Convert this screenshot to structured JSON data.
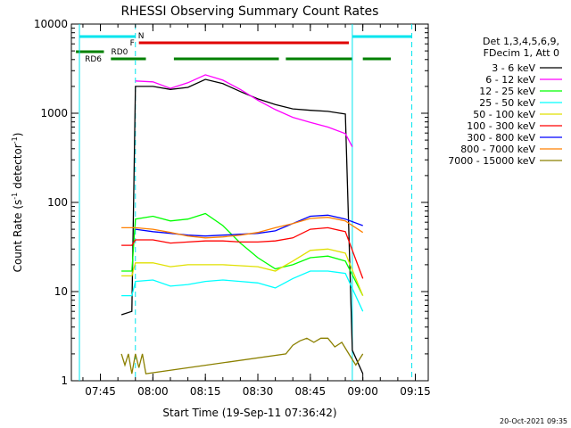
{
  "chart_data": {
    "type": "line",
    "title": "RHESSI Observing Summary Count Rates",
    "xlabel": "Start Time (19-Sep-11 07:36:42)",
    "ylabel_main": "Count Rate (s",
    "ylabel_sup1": "-1",
    "ylabel_mid": " detector",
    "ylabel_sup2": "-1",
    "ylabel_end": ")",
    "yscale": "log",
    "ylim": [
      1,
      10000
    ],
    "xlim_minutes_after_0736_42": [
      0,
      102
    ],
    "x_ticks": [
      "07:45",
      "08:00",
      "08:15",
      "08:30",
      "08:45",
      "09:00",
      "09:15"
    ],
    "y_ticks": [
      "1",
      "10",
      "100",
      "1000",
      "10000"
    ],
    "legend_header": [
      "Det 1,3,4,5,6,9,",
      "FDecim 1, Att 0"
    ],
    "footer_timestamp": "20-Oct-2021 09:35",
    "flag_labels": {
      "night": "N",
      "flare": "F",
      "rd0": "RD0",
      "rd6": "RD6"
    },
    "series": [
      {
        "name": "3 - 6 keV",
        "color": "#000000",
        "x": [
          "07:51",
          "07:54",
          "07:55",
          "08:00",
          "08:05",
          "08:10",
          "08:15",
          "08:20",
          "08:25",
          "08:30",
          "08:35",
          "08:40",
          "08:45",
          "08:50",
          "08:55",
          "08:57",
          "09:00"
        ],
        "y": [
          5.5,
          6,
          2000,
          2000,
          1850,
          1950,
          2400,
          2150,
          1750,
          1450,
          1250,
          1120,
          1080,
          1050,
          980,
          2.2,
          1.2
        ]
      },
      {
        "name": "6 - 12 keV",
        "color": "#ff00ff",
        "x": [
          "07:55",
          "08:00",
          "08:05",
          "08:10",
          "08:15",
          "08:20",
          "08:25",
          "08:30",
          "08:35",
          "08:40",
          "08:45",
          "08:50",
          "08:55",
          "08:57"
        ],
        "y": [
          2300,
          2250,
          1900,
          2200,
          2700,
          2350,
          1850,
          1400,
          1100,
          900,
          790,
          700,
          590,
          420
        ]
      },
      {
        "name": "12 - 25 keV",
        "color": "#00ff00",
        "x": [
          "07:51",
          "07:54",
          "07:55",
          "08:00",
          "08:05",
          "08:10",
          "08:15",
          "08:20",
          "08:25",
          "08:30",
          "08:35",
          "08:40",
          "08:45",
          "08:50",
          "08:55",
          "09:00"
        ],
        "y": [
          17,
          17,
          65,
          70,
          62,
          65,
          75,
          55,
          35,
          24,
          18,
          20,
          24,
          25,
          22,
          9
        ]
      },
      {
        "name": "25 - 50 keV",
        "color": "#00ffff",
        "x": [
          "07:51",
          "07:54",
          "07:55",
          "08:00",
          "08:05",
          "08:10",
          "08:15",
          "08:20",
          "08:25",
          "08:30",
          "08:35",
          "08:40",
          "08:45",
          "08:50",
          "08:55",
          "09:00"
        ],
        "y": [
          9,
          9,
          13,
          13.5,
          11.5,
          12,
          13,
          13.5,
          13,
          12.5,
          11,
          14,
          17,
          17,
          16,
          6
        ]
      },
      {
        "name": "50 - 100 keV",
        "color": "#e0e000",
        "x": [
          "07:51",
          "07:54",
          "07:55",
          "08:00",
          "08:05",
          "08:10",
          "08:15",
          "08:20",
          "08:25",
          "08:30",
          "08:35",
          "08:40",
          "08:45",
          "08:50",
          "08:55",
          "09:00"
        ],
        "y": [
          15,
          15,
          21,
          21,
          19,
          20,
          20,
          20,
          19.5,
          19,
          17,
          22,
          29,
          30,
          27,
          9
        ]
      },
      {
        "name": "100 - 300 keV",
        "color": "#ff0000",
        "x": [
          "07:51",
          "07:54",
          "07:55",
          "08:00",
          "08:05",
          "08:10",
          "08:15",
          "08:20",
          "08:25",
          "08:30",
          "08:35",
          "08:40",
          "08:45",
          "08:50",
          "08:55",
          "09:00"
        ],
        "y": [
          33,
          33,
          38,
          38,
          35,
          36,
          37,
          37,
          36,
          36,
          37,
          40,
          50,
          52,
          47,
          14
        ]
      },
      {
        "name": "300 - 800 keV",
        "color": "#0000ff",
        "x": [
          "07:55",
          "08:00",
          "08:05",
          "08:10",
          "08:15",
          "08:20",
          "08:25",
          "08:30",
          "08:35",
          "08:40",
          "08:45",
          "08:50",
          "08:55",
          "09:00"
        ],
        "y": [
          50,
          47,
          45,
          43,
          42,
          43,
          44,
          45,
          48,
          58,
          70,
          72,
          65,
          55
        ]
      },
      {
        "name": "800 - 7000 keV",
        "color": "#ff8000",
        "x": [
          "07:51",
          "07:54",
          "07:55",
          "08:00",
          "08:05",
          "08:10",
          "08:15",
          "08:20",
          "08:25",
          "08:30",
          "08:35",
          "08:40",
          "08:45",
          "08:50",
          "08:55",
          "09:00"
        ],
        "y": [
          52,
          52,
          52,
          50,
          46,
          42,
          40,
          41,
          43,
          46,
          52,
          58,
          66,
          68,
          62,
          46
        ]
      },
      {
        "name": "7000 - 15000 keV",
        "color": "#8b8000",
        "x": [
          "07:51",
          "07:52",
          "07:53",
          "07:54",
          "07:55",
          "07:56",
          "07:57",
          "07:58",
          "08:38",
          "08:40",
          "08:42",
          "08:44",
          "08:46",
          "08:48",
          "08:50",
          "08:52",
          "08:54",
          "08:56",
          "08:58",
          "09:00"
        ],
        "y": [
          2,
          1.5,
          2,
          1.2,
          2,
          1.4,
          2,
          1.2,
          2,
          2.5,
          2.8,
          3,
          2.7,
          3,
          3,
          2.4,
          2.7,
          2,
          1.5,
          2
        ]
      }
    ],
    "flags": {
      "night": {
        "color": "#00e5ee",
        "intervals": [
          [
            "07:39",
            "07:55"
          ],
          [
            "08:57",
            "09:14"
          ]
        ]
      },
      "flare": {
        "color": "#e00000",
        "intervals": [
          [
            "07:56",
            "08:56"
          ]
        ]
      },
      "rd0": {
        "color": "#008000",
        "intervals": [
          [
            "07:38",
            "07:46"
          ]
        ]
      },
      "rd6": {
        "color": "#008000",
        "intervals": [
          [
            "07:48",
            "07:58"
          ],
          [
            "08:06",
            "08:36"
          ],
          [
            "08:38",
            "08:57"
          ],
          [
            "09:00",
            "09:08"
          ]
        ]
      }
    }
  }
}
